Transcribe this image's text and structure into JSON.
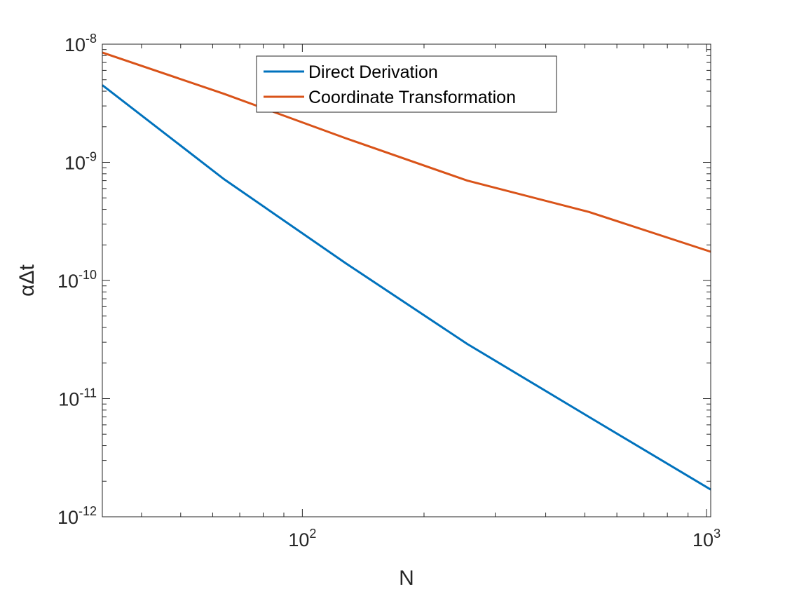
{
  "chart_data": {
    "type": "line",
    "title": "",
    "xlabel": "N",
    "ylabel": "αΔt",
    "x_scale": "log",
    "y_scale": "log",
    "xlim": [
      32,
      1024
    ],
    "ylim": [
      1e-12,
      1e-08
    ],
    "grid": false,
    "legend_position": "top-center",
    "x_ticks": [
      {
        "value": 100,
        "base": "10",
        "exp": "2"
      },
      {
        "value": 1000,
        "base": "10",
        "exp": "3"
      }
    ],
    "y_ticks": [
      {
        "value": 1e-08,
        "base": "10",
        "exp": "-8"
      },
      {
        "value": 1e-09,
        "base": "10",
        "exp": "-9"
      },
      {
        "value": 1e-10,
        "base": "10",
        "exp": "-10"
      },
      {
        "value": 1e-11,
        "base": "10",
        "exp": "-11"
      },
      {
        "value": 1e-12,
        "base": "10",
        "exp": "-12"
      }
    ],
    "series": [
      {
        "name": "Direct Derivation",
        "color": "#0072BD",
        "x": [
          32,
          64,
          128,
          256,
          512,
          1024
        ],
        "y": [
          4.5e-09,
          7.2e-10,
          1.4e-10,
          2.9e-11,
          7e-12,
          1.7e-12
        ]
      },
      {
        "name": "Coordinate Transformation",
        "color": "#D95319",
        "x": [
          32,
          64,
          128,
          256,
          512,
          1024
        ],
        "y": [
          8.5e-09,
          3.8e-09,
          1.6e-09,
          7e-10,
          3.8e-10,
          1.75e-10
        ]
      }
    ]
  }
}
